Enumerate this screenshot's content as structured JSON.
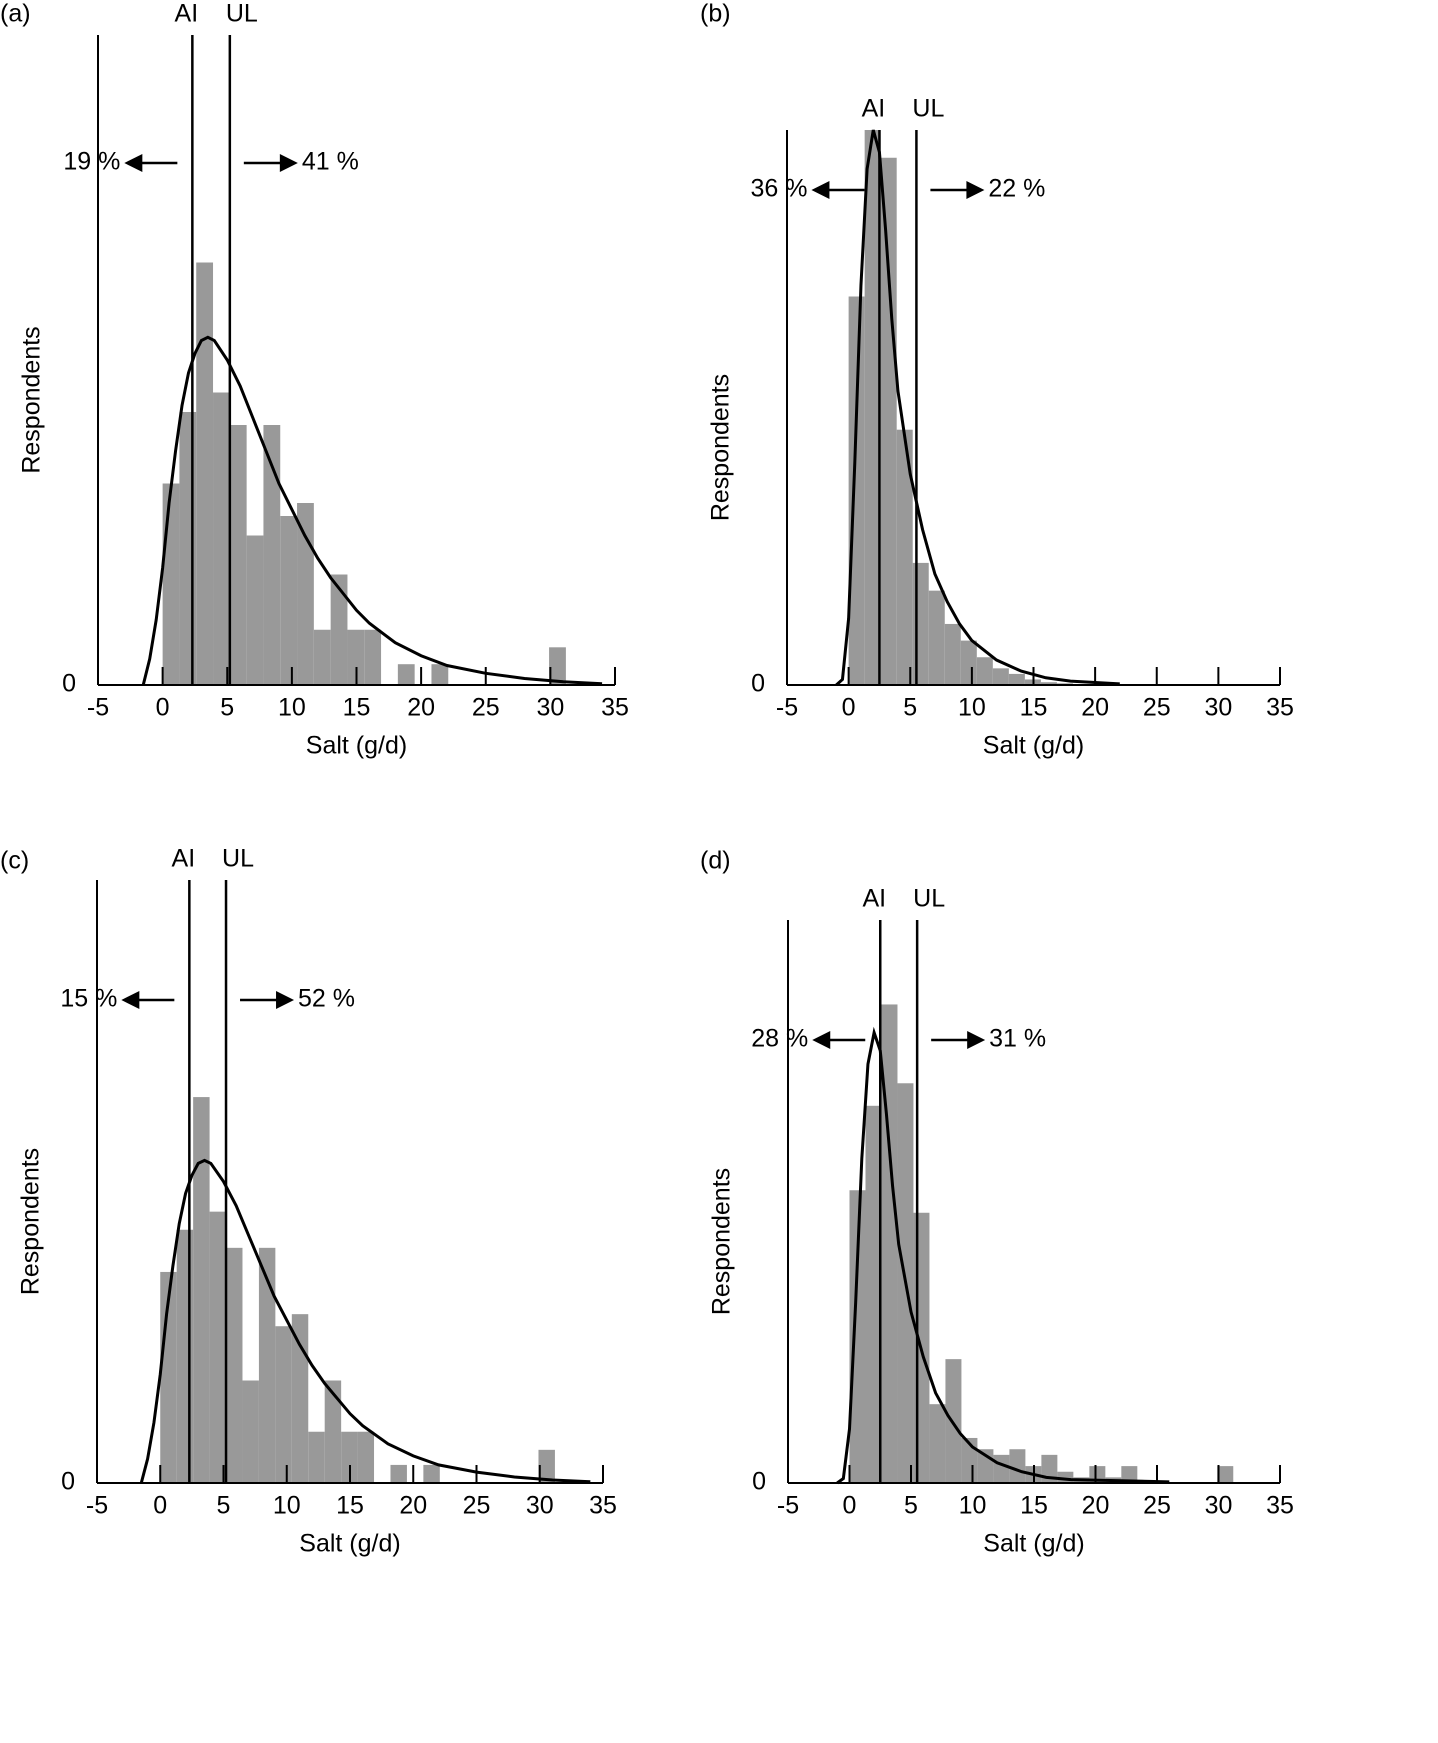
{
  "chart_data": [
    {
      "type": "histogram",
      "panel_label": "(a)",
      "xlabel": "Salt (g/d)",
      "ylabel": "Respondents",
      "xlim": [
        -5,
        35
      ],
      "ylim": [
        0,
        100
      ],
      "xticks": [
        -5,
        0,
        5,
        10,
        15,
        20,
        25,
        30,
        35
      ],
      "yticks": [
        0
      ],
      "color": "#999999",
      "bins": [
        0,
        1.3,
        2.6,
        3.9,
        5.2,
        6.5,
        7.8,
        9.1,
        10.4,
        11.7,
        13,
        14.3,
        15.6,
        16.9,
        18.2,
        19.5,
        20.8,
        22.1,
        23.4,
        24.7,
        26,
        27.3,
        28.6,
        29.9,
        31.2,
        32.5
      ],
      "values": [
        31,
        42,
        65,
        45,
        40,
        23,
        40,
        26,
        28,
        8.5,
        17,
        8.5,
        8.5,
        0,
        3.2,
        0,
        3.2,
        0,
        0,
        0,
        0,
        0,
        0,
        5.8,
        0
      ],
      "curve": {
        "x": [
          -1.5,
          -1,
          -0.5,
          0,
          0.5,
          1,
          1.5,
          2,
          2.5,
          3,
          3.5,
          4,
          5,
          6,
          7,
          8,
          9,
          10,
          11,
          12,
          13,
          14,
          15,
          16,
          18,
          20,
          22,
          25,
          28,
          31,
          34
        ],
        "y": [
          0,
          4,
          10,
          18,
          28,
          36,
          43,
          48,
          51,
          53,
          53.5,
          53,
          50,
          46,
          41,
          36,
          31,
          27,
          23,
          19.5,
          16.5,
          14,
          11.5,
          9.5,
          6.5,
          4.5,
          3,
          1.8,
          1,
          0.5,
          0.2
        ]
      },
      "ai": {
        "label": "AI",
        "value": 2.3
      },
      "ul": {
        "label": "UL",
        "value": 5.2
      },
      "below_ai": {
        "value": 19,
        "label": "19 %"
      },
      "above_ul": {
        "value": 41,
        "label": "41 %"
      }
    },
    {
      "type": "histogram",
      "panel_label": "(b)",
      "xlabel": "Salt (g/d)",
      "ylabel": "Respondents",
      "xlim": [
        -5,
        35
      ],
      "ylim": [
        0,
        100
      ],
      "xticks": [
        -5,
        0,
        5,
        10,
        15,
        20,
        25,
        30,
        35
      ],
      "yticks": [
        0
      ],
      "color": "#999999",
      "bins": [
        0,
        1.3,
        2.6,
        3.9,
        5.2,
        6.5,
        7.8,
        9.1,
        10.4,
        11.7,
        13,
        14.3,
        15.6,
        16.9,
        18.2,
        19.5,
        20.8,
        22.1,
        23.4,
        24.7,
        26,
        27.3,
        28.6,
        29.9,
        31.2,
        32.5
      ],
      "values": [
        70,
        100,
        95,
        46,
        22,
        17,
        11,
        8,
        5,
        3,
        2,
        1,
        0.5,
        0.3,
        0,
        0,
        0,
        0,
        0,
        0,
        0,
        0,
        0,
        0,
        0
      ],
      "curve": {
        "x": [
          -1,
          -0.5,
          0,
          0.5,
          1,
          1.5,
          2,
          2.5,
          3,
          3.5,
          4,
          5,
          6,
          7,
          8,
          9,
          10,
          12,
          14,
          16,
          18,
          22
        ],
        "y": [
          0,
          1,
          12,
          40,
          72,
          93,
          100,
          96,
          82,
          66,
          53,
          38,
          28,
          20,
          15,
          11,
          8,
          4.5,
          2.5,
          1.3,
          0.7,
          0.2
        ]
      },
      "ai": {
        "label": "AI",
        "value": 2.5
      },
      "ul": {
        "label": "UL",
        "value": 5.5
      },
      "below_ai": {
        "value": 36,
        "label": "36 %"
      },
      "above_ul": {
        "value": 22,
        "label": "22 %"
      }
    },
    {
      "type": "histogram",
      "panel_label": "(c)",
      "xlabel": "Salt (g/d)",
      "ylabel": "Respondents",
      "xlim": [
        -5,
        35
      ],
      "ylim": [
        0,
        100
      ],
      "xticks": [
        -5,
        0,
        5,
        10,
        15,
        20,
        25,
        30,
        35
      ],
      "yticks": [
        0
      ],
      "color": "#999999",
      "bins": [
        0,
        1.3,
        2.6,
        3.9,
        5.2,
        6.5,
        7.8,
        9.1,
        10.4,
        11.7,
        13,
        14.3,
        15.6,
        16.9,
        18.2,
        19.5,
        20.8,
        22.1,
        23.4,
        24.7,
        26,
        27.3,
        28.6,
        29.9,
        31.2,
        32.5
      ],
      "values": [
        35,
        42,
        64,
        45,
        39,
        17,
        39,
        26,
        28,
        8.5,
        17,
        8.5,
        8.5,
        0,
        3,
        0,
        3,
        0,
        0,
        0,
        0,
        0,
        0,
        5.5,
        0
      ],
      "curve": {
        "x": [
          -1.5,
          -1,
          -0.5,
          0,
          0.5,
          1,
          1.5,
          2,
          2.5,
          3,
          3.5,
          4,
          5,
          6,
          7,
          8,
          9,
          10,
          11,
          12,
          13,
          14,
          15,
          16,
          18,
          20,
          22,
          25,
          28,
          31,
          34
        ],
        "y": [
          0,
          4,
          10,
          18,
          28,
          36,
          43,
          48,
          51,
          53,
          53.5,
          53,
          50,
          46,
          41,
          36,
          31,
          27,
          23,
          19.5,
          16.5,
          14,
          11.5,
          9.5,
          6.5,
          4.5,
          3,
          1.8,
          1,
          0.5,
          0.2
        ]
      },
      "ai": {
        "label": "AI",
        "value": 2.3
      },
      "ul": {
        "label": "UL",
        "value": 5.2
      },
      "below_ai": {
        "value": 15,
        "label": "15 %"
      },
      "above_ul": {
        "value": 52,
        "label": "52 %"
      }
    },
    {
      "type": "histogram",
      "panel_label": "(d)",
      "xlabel": "Salt (g/d)",
      "ylabel": "Respondents",
      "xlim": [
        -5,
        35
      ],
      "ylim": [
        0,
        100
      ],
      "xticks": [
        -5,
        0,
        5,
        10,
        15,
        20,
        25,
        30,
        35
      ],
      "yticks": [
        0
      ],
      "color": "#999999",
      "bins": [
        0,
        1.3,
        2.6,
        3.9,
        5.2,
        6.5,
        7.8,
        9.1,
        10.4,
        11.7,
        13,
        14.3,
        15.6,
        16.9,
        18.2,
        19.5,
        20.8,
        22.1,
        23.4,
        24.7,
        26,
        27.3,
        28.6,
        29.9,
        31.2,
        32.5
      ],
      "values": [
        52,
        67,
        85,
        71,
        48,
        14,
        22,
        8,
        6,
        5,
        6,
        3,
        5,
        2,
        1,
        3,
        1,
        3,
        0,
        0,
        0,
        0,
        0,
        3,
        0
      ],
      "curve": {
        "x": [
          -1,
          -0.5,
          0,
          0.5,
          1,
          1.5,
          2,
          2.5,
          3,
          3.5,
          4,
          5,
          6,
          7,
          8,
          9,
          10,
          12,
          14,
          16,
          18,
          26
        ],
        "y": [
          0,
          0.8,
          9.6,
          32,
          57.6,
          74.4,
          80,
          76.8,
          65.6,
          52.8,
          42.4,
          30.4,
          22.4,
          16,
          12,
          8.8,
          6.4,
          3.6,
          2,
          1,
          0.6,
          0.2
        ]
      },
      "ai": {
        "label": "AI",
        "value": 2.5
      },
      "ul": {
        "label": "UL",
        "value": 5.5
      },
      "below_ai": {
        "value": 28,
        "label": "28 %"
      },
      "above_ul": {
        "value": 31,
        "label": "31 %"
      }
    }
  ]
}
